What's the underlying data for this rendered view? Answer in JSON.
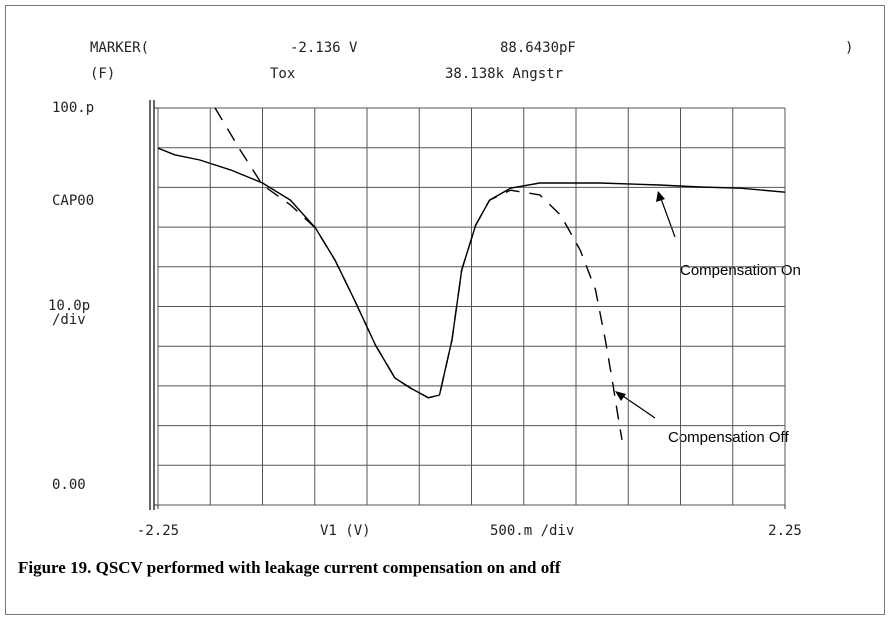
{
  "chart_data": {
    "type": "line",
    "title": "Figure 19. QSCV performed with leakage current compensation on and off",
    "header": {
      "marker": "MARKER(",
      "marker_x": "-2.136 V",
      "marker_y": "88.6430pF",
      "marker_end": ")",
      "unit": "(F)",
      "param": "Tox",
      "param_value": "38.138k Angstr"
    },
    "ylabel": "CAP00",
    "y_scale": [
      "10.0p",
      "/div"
    ],
    "xlabel": "V1 (V)",
    "x_scale": "500.m /div",
    "xlim": [
      -2.25,
      2.25
    ],
    "ylim": [
      0,
      100
    ],
    "xticks": [
      -2.25,
      2.25
    ],
    "yticks": [
      {
        "value": 100,
        "label": "100.p"
      },
      {
        "value": 0,
        "label": "0.00"
      }
    ],
    "xgrid": [
      -2.25,
      -1.875,
      -1.5,
      -1.125,
      -0.75,
      -0.375,
      0,
      0.375,
      0.75,
      1.125,
      1.5,
      1.875,
      2.25
    ],
    "ygrid": [
      0,
      10,
      20,
      30,
      40,
      50,
      60,
      70,
      80,
      90,
      100
    ],
    "series": [
      {
        "name": "Compensation On",
        "color": "#000000",
        "dash": false,
        "x": [
          -2.25,
          -2.13,
          -1.95,
          -1.73,
          -1.5,
          -1.3,
          -1.12,
          -0.98,
          -0.84,
          -0.69,
          -0.55,
          -0.44,
          -0.31,
          -0.23,
          -0.14,
          -0.07,
          0.03,
          0.13,
          0.28,
          0.49,
          0.92,
          1.35,
          1.64,
          1.93,
          2.25
        ],
        "values": [
          89.9,
          88.2,
          86.9,
          84.4,
          81.1,
          76.8,
          69.8,
          61.7,
          51.6,
          40.3,
          32.0,
          29.5,
          27.0,
          27.7,
          41.6,
          59.2,
          70.5,
          76.8,
          79.8,
          81.1,
          81.1,
          80.6,
          80.1,
          79.8,
          78.8
        ]
      },
      {
        "name": "Compensation Off",
        "color": "#000000",
        "dash": true,
        "x": [
          -1.84,
          -1.66,
          -1.5,
          -1.3,
          -1.12,
          -0.98,
          -0.84,
          -0.69,
          -0.55,
          -0.44,
          -0.31,
          -0.23,
          -0.14,
          -0.07,
          0.03,
          0.13,
          0.28,
          0.49,
          0.64,
          0.78,
          0.89,
          0.96,
          1.01,
          1.05,
          1.08
        ],
        "values": [
          100,
          89.4,
          80.6,
          75.6,
          69.8,
          61.7,
          51.6,
          40.3,
          32.0,
          29.5,
          27.0,
          27.7,
          41.6,
          59.2,
          70.5,
          76.8,
          79.3,
          78.1,
          73.0,
          64.2,
          54.2,
          41.6,
          31.5,
          22.7,
          16.4
        ]
      }
    ]
  }
}
